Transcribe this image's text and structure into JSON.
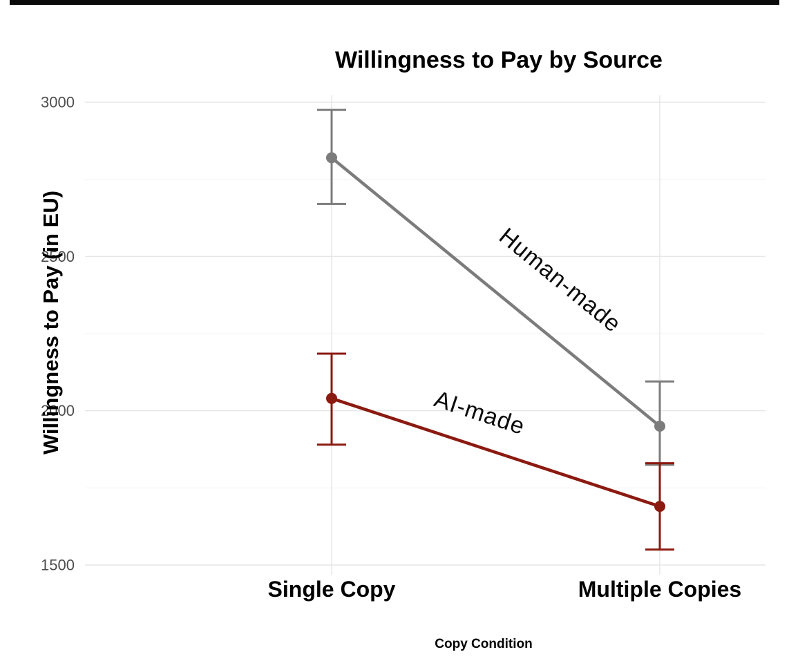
{
  "chart_data": {
    "type": "line",
    "title": "Willingness to Pay by Source",
    "xlabel": "Copy Condition",
    "ylabel": "Willingness to Pay (in EU)",
    "categories": [
      "Single Copy",
      "Multiple Copies"
    ],
    "series": [
      {
        "name": "Human-made",
        "color": "#7C7C7C",
        "values": [
          2820,
          1950
        ],
        "ci_low": [
          2670,
          1825
        ],
        "ci_high": [
          2975,
          2095
        ],
        "label_t": 0.6,
        "label_offset": 70
      },
      {
        "name": "AI-made",
        "color": "#8B1A10",
        "values": [
          2040,
          1690
        ],
        "ci_low": [
          1890,
          1550
        ],
        "ci_high": [
          2185,
          1830
        ],
        "label_t": 0.42,
        "label_offset": 45
      }
    ],
    "yticks": [
      1500,
      2000,
      2500,
      3000
    ],
    "ylim": [
      1430,
      3060
    ],
    "grid": true,
    "legend": "inline-line-labels",
    "error_bars": "95%-CI style whisker caps",
    "background": "#ffffff",
    "gridline_color": "#e7e7e7"
  }
}
